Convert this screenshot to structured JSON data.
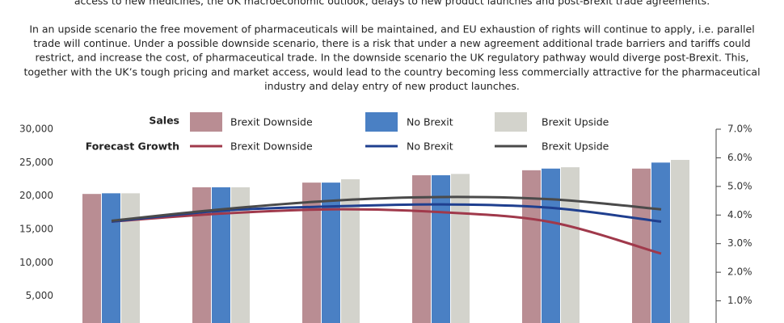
{
  "text": {
    "lead_line": "access to new medicines, the UK macroeconomic outlook, delays to new product launches and post-Brexit trade agreements.",
    "paragraph_lines": [
      "In an upside scenario the free movement of pharmaceuticals will be maintained, and EU exhaustion of rights will continue to apply, i.e. parallel",
      "trade will continue. Under a possible downside scenario, there is a risk that under a new agreement additional trade barriers and tariffs could",
      "restrict, and increase the cost, of pharmaceutical trade. In the downside scenario the UK regulatory pathway would diverge post-Brexit. This,",
      "together with the UK’s tough pricing and market access, would lead to the country becoming less commercially attractive for the pharmaceutical",
      "industry and delay entry of new product launches."
    ]
  },
  "chart_data": {
    "type": "bar",
    "legend_groups": [
      "Sales",
      "Forecast Growth"
    ],
    "categories": [
      null,
      null,
      null,
      null,
      null,
      null
    ],
    "series": [
      {
        "name": "Brexit Downside",
        "type": "bar",
        "color": "#b98d93",
        "values": [
          20300,
          21300,
          22000,
          23100,
          23850,
          24100
        ]
      },
      {
        "name": "No Brexit",
        "type": "bar",
        "color": "#4a80c4",
        "values": [
          20400,
          21300,
          22000,
          23100,
          24100,
          25000
        ]
      },
      {
        "name": "Brexit Upside",
        "type": "bar",
        "color": "#d3d3cc",
        "values": [
          20400,
          21300,
          22500,
          23300,
          24300,
          25400
        ]
      },
      {
        "name": "Brexit Downside",
        "type": "line",
        "axis": "y2",
        "color": "#a0394b",
        "values": [
          3.77,
          4.05,
          4.2,
          4.1,
          3.75,
          2.65
        ]
      },
      {
        "name": "No Brexit",
        "type": "line",
        "axis": "y2",
        "color": "#1f3f8f",
        "values": [
          3.77,
          4.15,
          4.3,
          4.37,
          4.25,
          3.77
        ]
      },
      {
        "name": "Brexit Upside",
        "type": "line",
        "axis": "y2",
        "color": "#4a4a4a",
        "values": [
          3.8,
          4.2,
          4.5,
          4.63,
          4.55,
          4.2
        ]
      }
    ],
    "ylim": [
      0,
      30000
    ],
    "yticks": [
      {
        "value": 5000,
        "label": "5,000"
      },
      {
        "value": 10000,
        "label": "10,000"
      },
      {
        "value": 15000,
        "label": "15,000"
      },
      {
        "value": 20000,
        "label": "20,000"
      },
      {
        "value": 25000,
        "label": "25,000"
      },
      {
        "value": 30000,
        "label": "30,000"
      }
    ],
    "y2lim": [
      0,
      7
    ],
    "y2ticks": [
      {
        "value": 1,
        "label": "1.0%"
      },
      {
        "value": 2,
        "label": "2.0%"
      },
      {
        "value": 3,
        "label": "3.0%"
      },
      {
        "value": 4,
        "label": "4.0%"
      },
      {
        "value": 5,
        "label": "5.0%"
      },
      {
        "value": 6,
        "label": "6.0%"
      },
      {
        "value": 7,
        "label": "7.0%"
      }
    ]
  }
}
